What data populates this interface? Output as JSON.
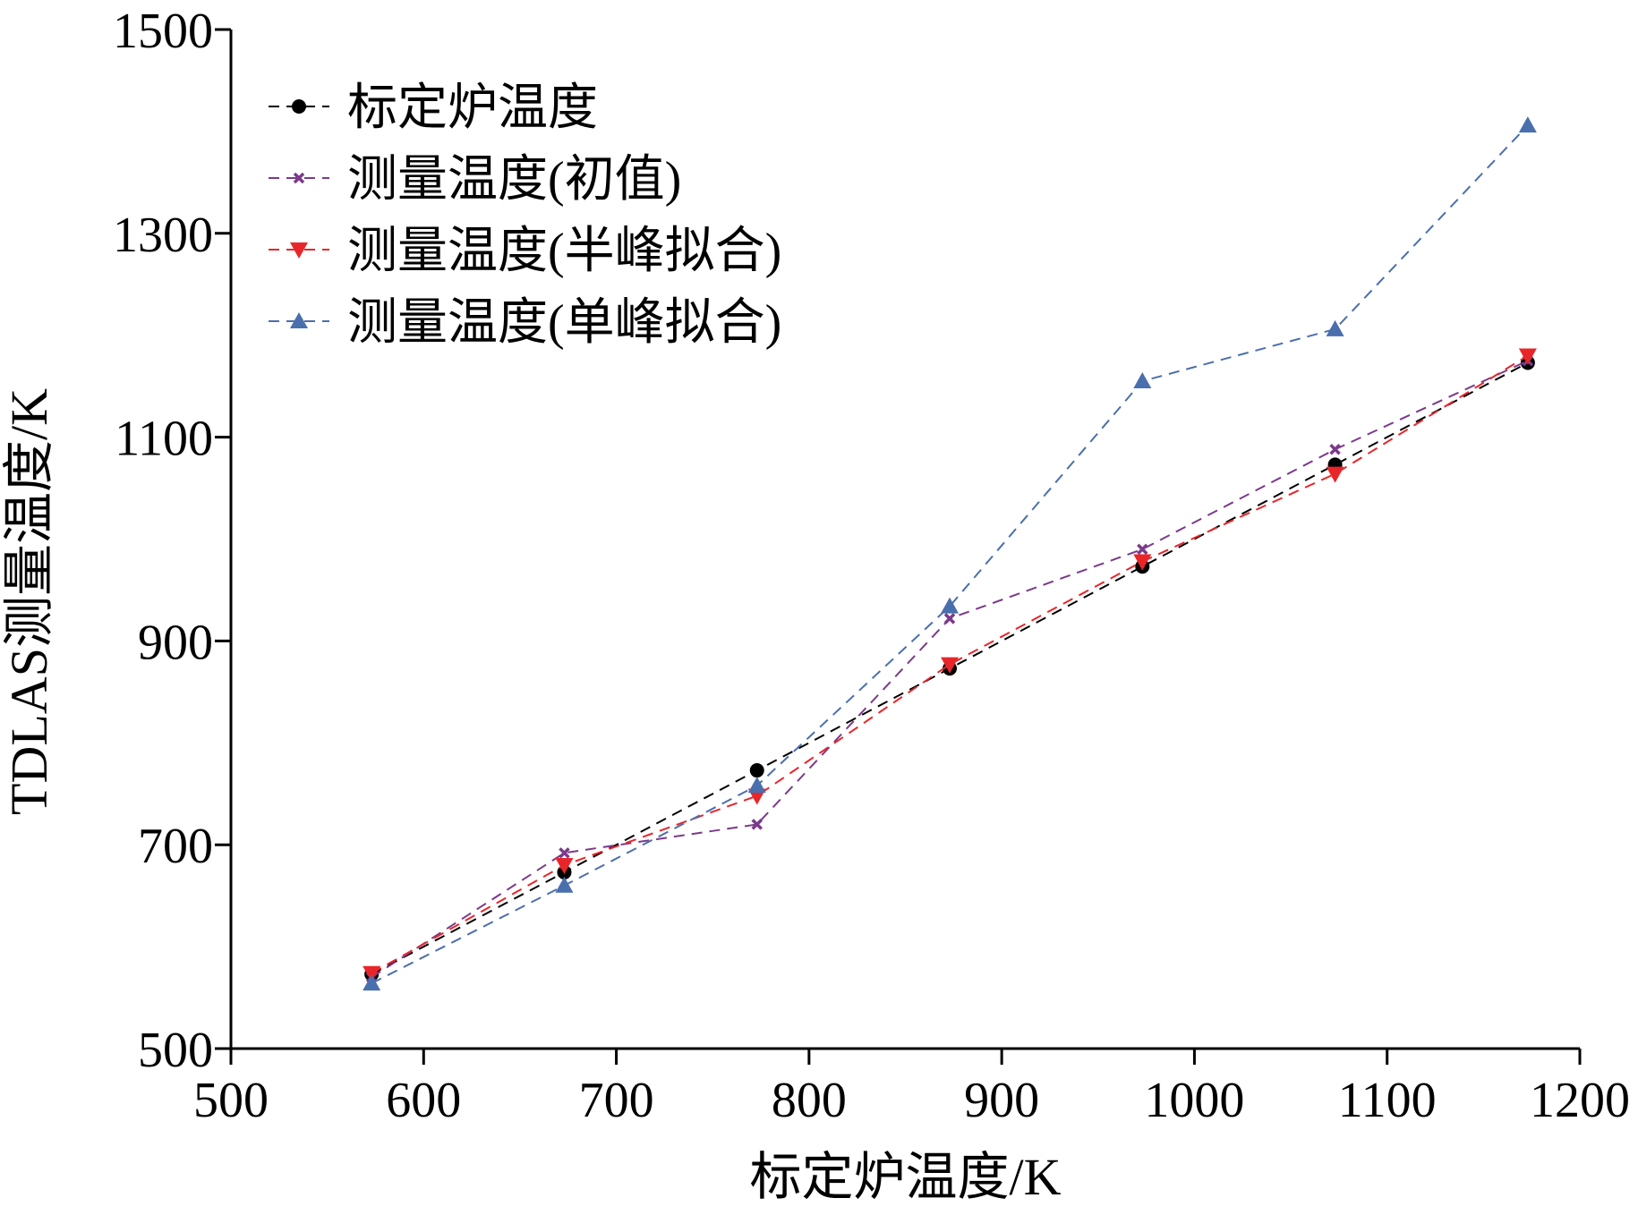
{
  "chart_data": {
    "type": "line",
    "xlabel": "标定炉温度/K",
    "ylabel": "TDLAS测量温度/K",
    "xlim": [
      500,
      1200
    ],
    "ylim": [
      500,
      1500
    ],
    "xticks": [
      500,
      600,
      700,
      800,
      900,
      1000,
      1100,
      1200
    ],
    "yticks": [
      500,
      700,
      900,
      1100,
      1300,
      1500
    ],
    "grid": false,
    "legend_position": "top-left",
    "x": [
      573,
      673,
      773,
      873,
      973,
      1073,
      1173
    ],
    "series": [
      {
        "name": "标定炉温度",
        "color": "#000000",
        "marker": "circle",
        "values": [
          573,
          673,
          773,
          873,
          973,
          1073,
          1173
        ]
      },
      {
        "name": "测量温度(初值)",
        "color": "#7b3a8a",
        "marker": "x",
        "values": [
          570,
          692,
          720,
          922,
          990,
          1088,
          1175
        ]
      },
      {
        "name": "测量温度(半峰拟合)",
        "color": "#e8262a",
        "marker": "triangle-down",
        "values": [
          574,
          680,
          748,
          877,
          978,
          1064,
          1180
        ]
      },
      {
        "name": "测量温度(单峰拟合)",
        "color": "#4a6fad",
        "marker": "triangle-up",
        "values": [
          564,
          660,
          758,
          934,
          1155,
          1206,
          1406
        ]
      }
    ]
  }
}
